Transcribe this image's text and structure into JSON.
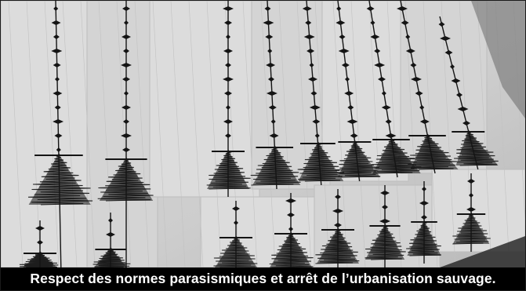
{
  "caption": {
    "text": "Respect des normes parasismiques et arrêt de l’urbanisation sauvage."
  },
  "photo": {
    "subject": "seismogram-paper-strips",
    "palette": {
      "paper": "#dcdcdc",
      "ink": "#141414",
      "shadow": "#8a8a8a"
    }
  },
  "colors": {
    "caption_background": "#000000",
    "caption_text": "#ffffff"
  }
}
